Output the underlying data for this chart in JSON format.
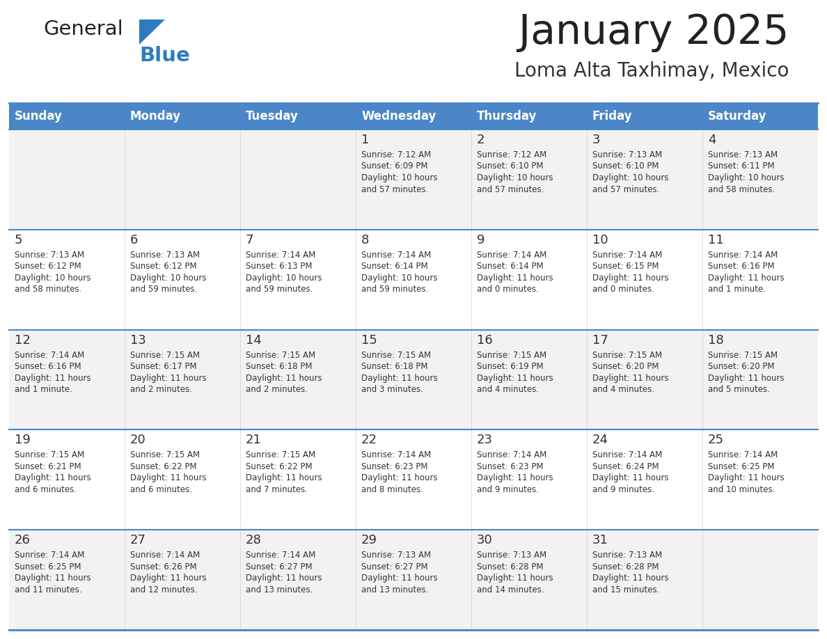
{
  "title": "January 2025",
  "subtitle": "Loma Alta Taxhimay, Mexico",
  "days_of_week": [
    "Sunday",
    "Monday",
    "Tuesday",
    "Wednesday",
    "Thursday",
    "Friday",
    "Saturday"
  ],
  "header_bg": "#4a86c8",
  "header_text": "#ffffff",
  "row_bg_light": "#f2f2f2",
  "row_bg_white": "#ffffff",
  "cell_text_color": "#333333",
  "day_num_color": "#333333",
  "border_color": "#4a86c8",
  "title_color": "#222222",
  "subtitle_color": "#333333",
  "logo_general_color": "#222222",
  "logo_blue_color": "#2e7cbf",
  "calendar_data": [
    [
      {
        "day": "",
        "sunrise": "",
        "sunset": "",
        "daylight": ""
      },
      {
        "day": "",
        "sunrise": "",
        "sunset": "",
        "daylight": ""
      },
      {
        "day": "",
        "sunrise": "",
        "sunset": "",
        "daylight": ""
      },
      {
        "day": "1",
        "sunrise": "7:12 AM",
        "sunset": "6:09 PM",
        "daylight": "10 hours and 57 minutes."
      },
      {
        "day": "2",
        "sunrise": "7:12 AM",
        "sunset": "6:10 PM",
        "daylight": "10 hours and 57 minutes."
      },
      {
        "day": "3",
        "sunrise": "7:13 AM",
        "sunset": "6:10 PM",
        "daylight": "10 hours and 57 minutes."
      },
      {
        "day": "4",
        "sunrise": "7:13 AM",
        "sunset": "6:11 PM",
        "daylight": "10 hours and 58 minutes."
      }
    ],
    [
      {
        "day": "5",
        "sunrise": "7:13 AM",
        "sunset": "6:12 PM",
        "daylight": "10 hours and 58 minutes."
      },
      {
        "day": "6",
        "sunrise": "7:13 AM",
        "sunset": "6:12 PM",
        "daylight": "10 hours and 59 minutes."
      },
      {
        "day": "7",
        "sunrise": "7:14 AM",
        "sunset": "6:13 PM",
        "daylight": "10 hours and 59 minutes."
      },
      {
        "day": "8",
        "sunrise": "7:14 AM",
        "sunset": "6:14 PM",
        "daylight": "10 hours and 59 minutes."
      },
      {
        "day": "9",
        "sunrise": "7:14 AM",
        "sunset": "6:14 PM",
        "daylight": "11 hours and 0 minutes."
      },
      {
        "day": "10",
        "sunrise": "7:14 AM",
        "sunset": "6:15 PM",
        "daylight": "11 hours and 0 minutes."
      },
      {
        "day": "11",
        "sunrise": "7:14 AM",
        "sunset": "6:16 PM",
        "daylight": "11 hours and 1 minute."
      }
    ],
    [
      {
        "day": "12",
        "sunrise": "7:14 AM",
        "sunset": "6:16 PM",
        "daylight": "11 hours and 1 minute."
      },
      {
        "day": "13",
        "sunrise": "7:15 AM",
        "sunset": "6:17 PM",
        "daylight": "11 hours and 2 minutes."
      },
      {
        "day": "14",
        "sunrise": "7:15 AM",
        "sunset": "6:18 PM",
        "daylight": "11 hours and 2 minutes."
      },
      {
        "day": "15",
        "sunrise": "7:15 AM",
        "sunset": "6:18 PM",
        "daylight": "11 hours and 3 minutes."
      },
      {
        "day": "16",
        "sunrise": "7:15 AM",
        "sunset": "6:19 PM",
        "daylight": "11 hours and 4 minutes."
      },
      {
        "day": "17",
        "sunrise": "7:15 AM",
        "sunset": "6:20 PM",
        "daylight": "11 hours and 4 minutes."
      },
      {
        "day": "18",
        "sunrise": "7:15 AM",
        "sunset": "6:20 PM",
        "daylight": "11 hours and 5 minutes."
      }
    ],
    [
      {
        "day": "19",
        "sunrise": "7:15 AM",
        "sunset": "6:21 PM",
        "daylight": "11 hours and 6 minutes."
      },
      {
        "day": "20",
        "sunrise": "7:15 AM",
        "sunset": "6:22 PM",
        "daylight": "11 hours and 6 minutes."
      },
      {
        "day": "21",
        "sunrise": "7:15 AM",
        "sunset": "6:22 PM",
        "daylight": "11 hours and 7 minutes."
      },
      {
        "day": "22",
        "sunrise": "7:14 AM",
        "sunset": "6:23 PM",
        "daylight": "11 hours and 8 minutes."
      },
      {
        "day": "23",
        "sunrise": "7:14 AM",
        "sunset": "6:23 PM",
        "daylight": "11 hours and 9 minutes."
      },
      {
        "day": "24",
        "sunrise": "7:14 AM",
        "sunset": "6:24 PM",
        "daylight": "11 hours and 9 minutes."
      },
      {
        "day": "25",
        "sunrise": "7:14 AM",
        "sunset": "6:25 PM",
        "daylight": "11 hours and 10 minutes."
      }
    ],
    [
      {
        "day": "26",
        "sunrise": "7:14 AM",
        "sunset": "6:25 PM",
        "daylight": "11 hours and 11 minutes."
      },
      {
        "day": "27",
        "sunrise": "7:14 AM",
        "sunset": "6:26 PM",
        "daylight": "11 hours and 12 minutes."
      },
      {
        "day": "28",
        "sunrise": "7:14 AM",
        "sunset": "6:27 PM",
        "daylight": "11 hours and 13 minutes."
      },
      {
        "day": "29",
        "sunrise": "7:13 AM",
        "sunset": "6:27 PM",
        "daylight": "11 hours and 13 minutes."
      },
      {
        "day": "30",
        "sunrise": "7:13 AM",
        "sunset": "6:28 PM",
        "daylight": "11 hours and 14 minutes."
      },
      {
        "day": "31",
        "sunrise": "7:13 AM",
        "sunset": "6:28 PM",
        "daylight": "11 hours and 15 minutes."
      },
      {
        "day": "",
        "sunrise": "",
        "sunset": "",
        "daylight": ""
      }
    ]
  ]
}
